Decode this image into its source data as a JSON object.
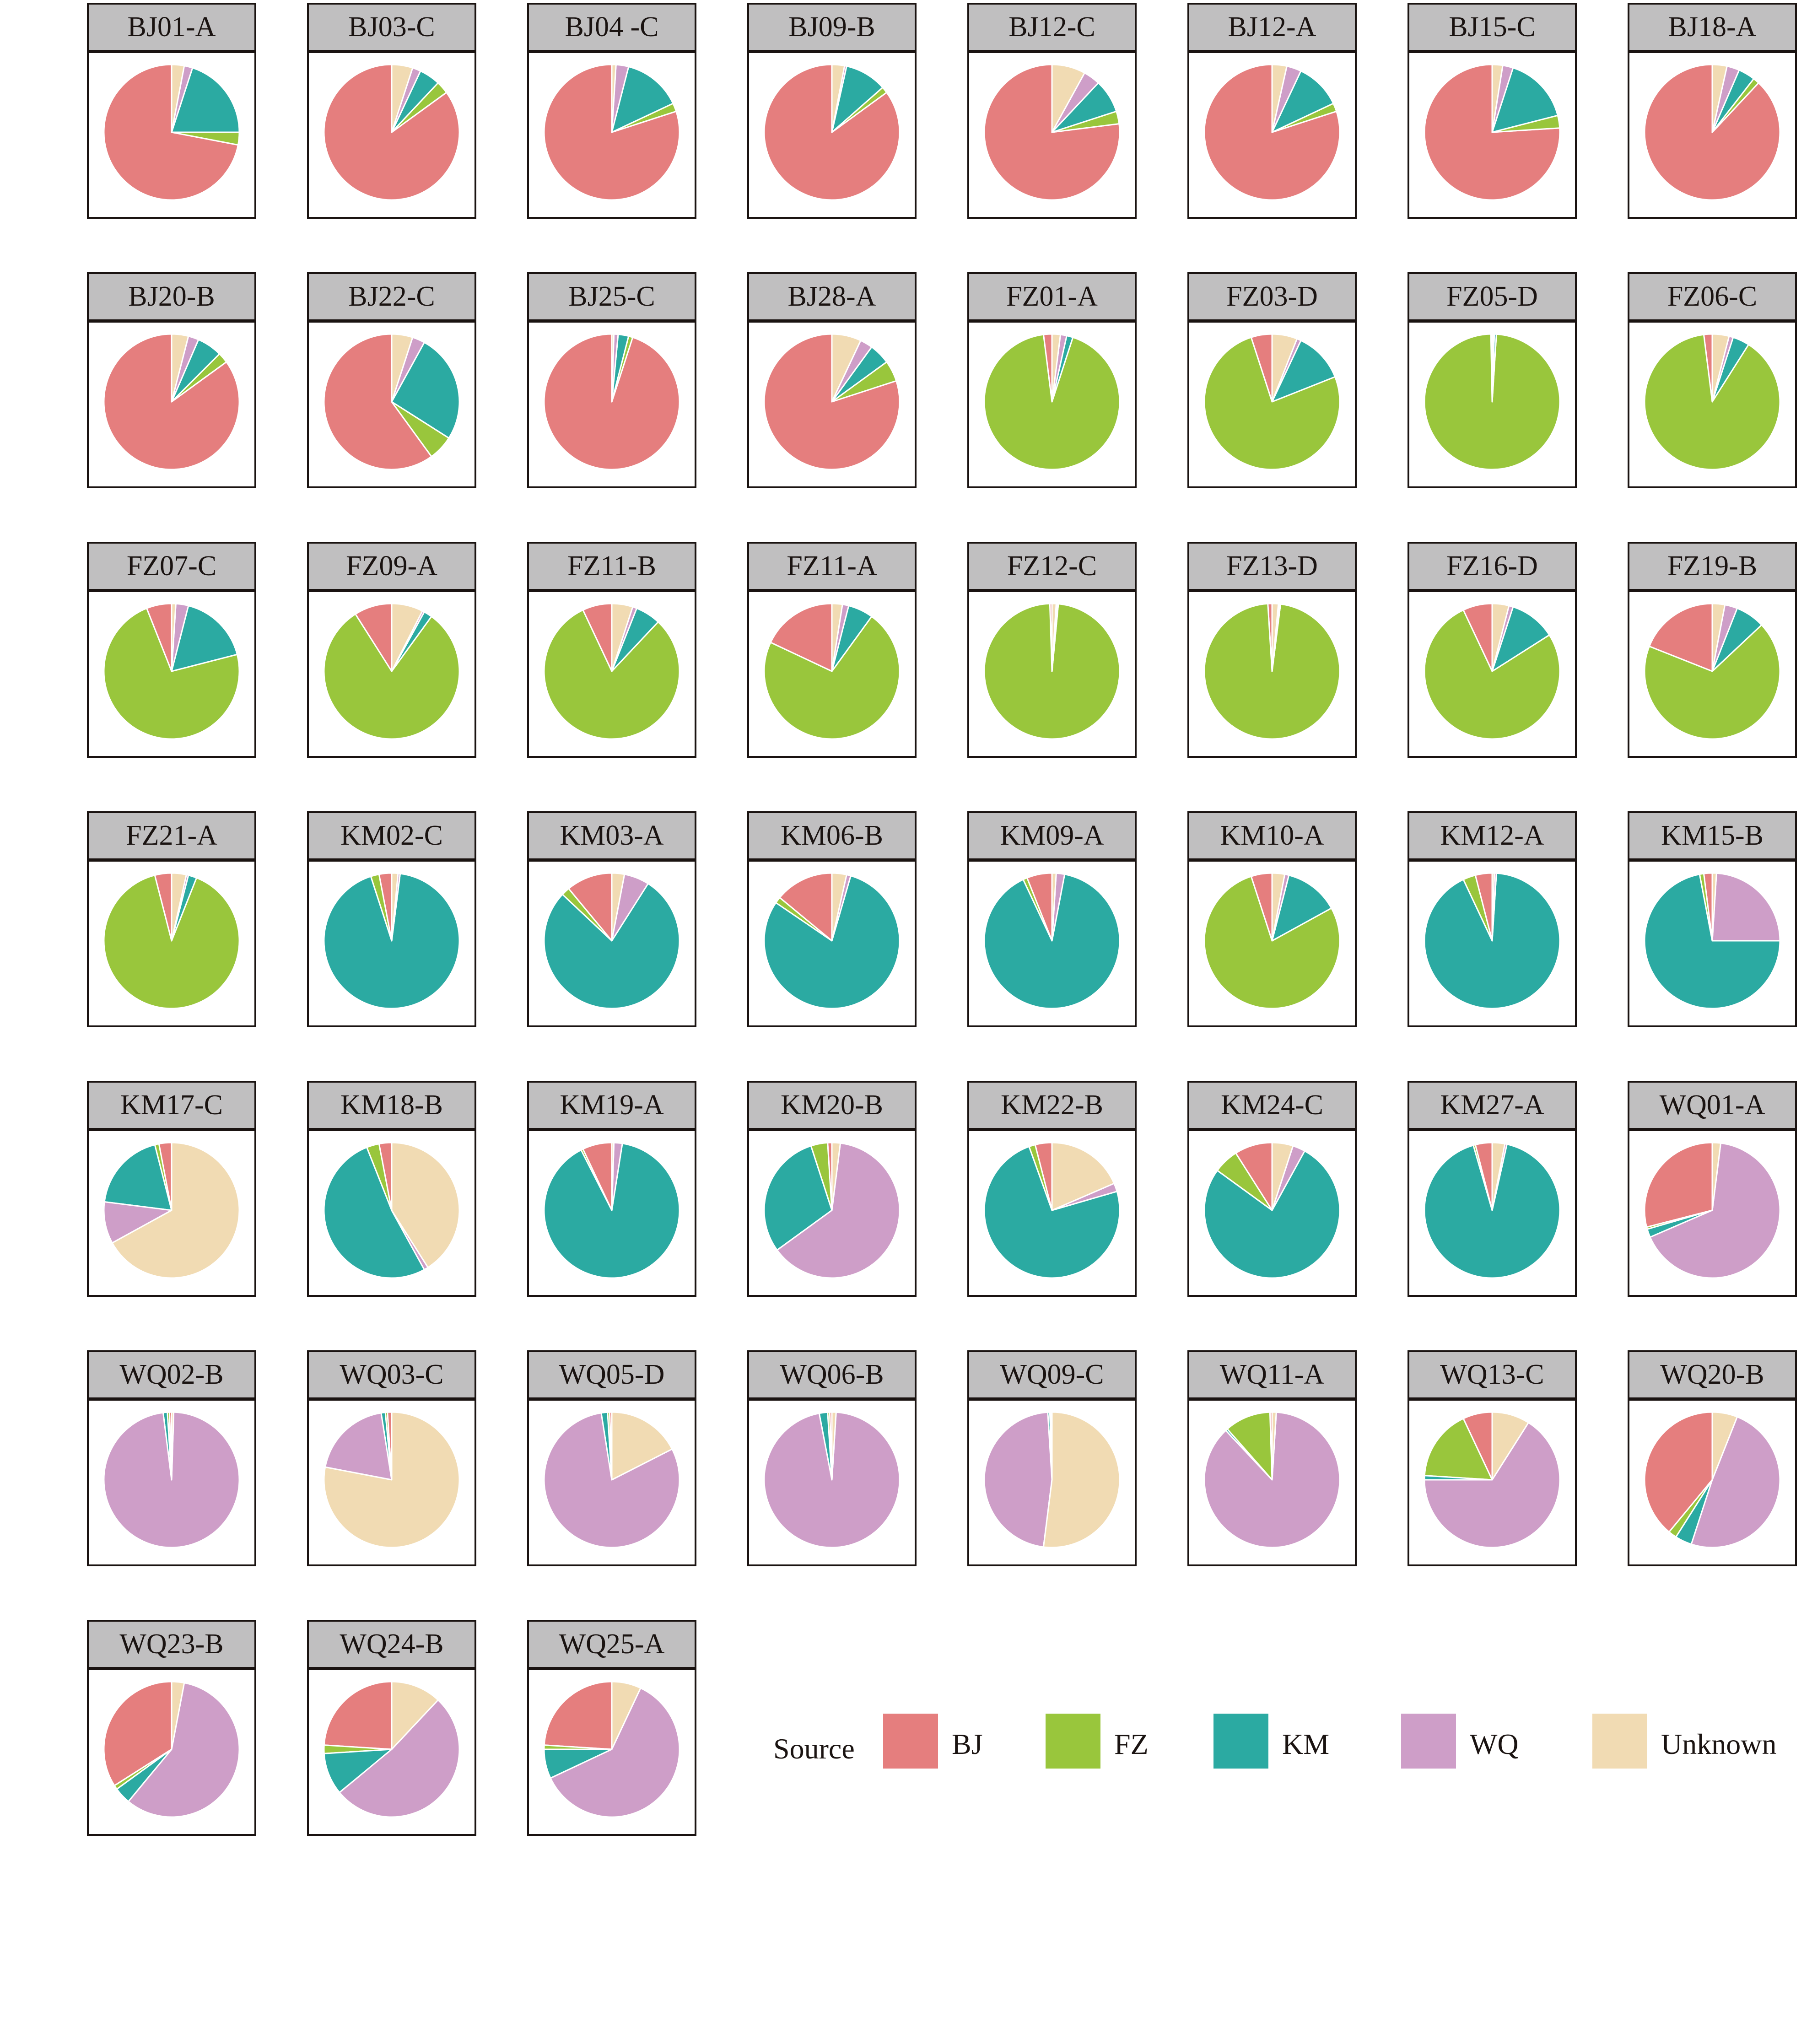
{
  "chart_data": {
    "type": "pie",
    "title": "",
    "legend": {
      "title": "Source",
      "position": "bottom-right",
      "entries": [
        {
          "name": "BJ",
          "color": "#E57E7E"
        },
        {
          "name": "FZ",
          "color": "#99C63C"
        },
        {
          "name": "KM",
          "color": "#2BAAA2"
        },
        {
          "name": "WQ",
          "color": "#CE9EC8"
        },
        {
          "name": "Unknown",
          "color": "#F1DBB3"
        }
      ]
    },
    "categories": [
      "BJ",
      "FZ",
      "KM",
      "WQ",
      "Unknown"
    ],
    "unit": "percent",
    "panels": [
      {
        "name": "BJ01-A",
        "values": [
          72,
          3,
          20,
          2,
          3
        ]
      },
      {
        "name": "BJ03-C",
        "values": [
          85,
          3,
          5,
          2,
          5
        ]
      },
      {
        "name": "BJ04 -C",
        "values": [
          80,
          2,
          14,
          3,
          1
        ]
      },
      {
        "name": "BJ09-B",
        "values": [
          85,
          1.5,
          10,
          0.5,
          3
        ]
      },
      {
        "name": "BJ12-C",
        "values": [
          77,
          3,
          8,
          4,
          8
        ]
      },
      {
        "name": "BJ12-A",
        "values": [
          80,
          2,
          11,
          3.5,
          3.5
        ]
      },
      {
        "name": "BJ15-C",
        "values": [
          76,
          3,
          16,
          2.5,
          2.5
        ]
      },
      {
        "name": "BJ18-A",
        "values": [
          88,
          1.5,
          4,
          3,
          3.5
        ]
      },
      {
        "name": "BJ20-B",
        "values": [
          85,
          2.5,
          6,
          2.5,
          4
        ]
      },
      {
        "name": "BJ22-C",
        "values": [
          60,
          6,
          26,
          3,
          5
        ]
      },
      {
        "name": "BJ25-C",
        "values": [
          95,
          1,
          2.5,
          1,
          0.5
        ]
      },
      {
        "name": "BJ28-A",
        "values": [
          80,
          5,
          5,
          3,
          7
        ]
      },
      {
        "name": "FZ01-A",
        "values": [
          2,
          93,
          1.5,
          1.5,
          2
        ]
      },
      {
        "name": "FZ03-D",
        "values": [
          5,
          76,
          12,
          1,
          6
        ]
      },
      {
        "name": "FZ05-D",
        "values": [
          0.3,
          98.7,
          0.5,
          0.3,
          0.2
        ]
      },
      {
        "name": "FZ06-C",
        "values": [
          2,
          89,
          4,
          1,
          4
        ]
      },
      {
        "name": "FZ07-C",
        "values": [
          6,
          73,
          17,
          3,
          1
        ]
      },
      {
        "name": "FZ09-A",
        "values": [
          9,
          81,
          2,
          0.5,
          7.5
        ]
      },
      {
        "name": "FZ11-B",
        "values": [
          7,
          81,
          6,
          1,
          5
        ]
      },
      {
        "name": "FZ11-A",
        "values": [
          18,
          72,
          6,
          1.5,
          2.5
        ]
      },
      {
        "name": "FZ12-C",
        "values": [
          0.5,
          98,
          0.3,
          0.2,
          1
        ]
      },
      {
        "name": "FZ13-D",
        "values": [
          1,
          97,
          0.3,
          0.2,
          1.5
        ]
      },
      {
        "name": "FZ16-D",
        "values": [
          7,
          77,
          11,
          1,
          4
        ]
      },
      {
        "name": "FZ19-B",
        "values": [
          19,
          68,
          7,
          3,
          3
        ]
      },
      {
        "name": "FZ21-A",
        "values": [
          4,
          90,
          2,
          0.5,
          3.5
        ]
      },
      {
        "name": "KM02-C",
        "values": [
          3,
          2,
          93,
          0.5,
          1.5
        ]
      },
      {
        "name": "KM03-A",
        "values": [
          11,
          2,
          78,
          6,
          3
        ]
      },
      {
        "name": "KM06-B",
        "values": [
          14,
          1.5,
          80,
          1,
          3.5
        ]
      },
      {
        "name": "KM09-A",
        "values": [
          6,
          1,
          90,
          2,
          1
        ]
      },
      {
        "name": "KM10-A",
        "values": [
          5,
          78,
          13,
          1,
          3
        ]
      },
      {
        "name": "KM12-A",
        "values": [
          4,
          3,
          92,
          0.5,
          0.5
        ]
      },
      {
        "name": "KM15-B",
        "values": [
          2,
          1,
          72,
          24,
          1
        ]
      },
      {
        "name": "KM17-C",
        "values": [
          3,
          1,
          19,
          10,
          67
        ]
      },
      {
        "name": "KM18-B",
        "values": [
          3,
          3,
          52,
          1,
          41
        ]
      },
      {
        "name": "KM19-A",
        "values": [
          7,
          0.5,
          90,
          2,
          0.5
        ]
      },
      {
        "name": "KM20-B",
        "values": [
          1,
          4,
          30,
          63,
          2
        ]
      },
      {
        "name": "KM22-B",
        "values": [
          4,
          1.5,
          74,
          2,
          18.5
        ]
      },
      {
        "name": "KM24-C",
        "values": [
          9,
          6,
          77,
          3,
          5
        ]
      },
      {
        "name": "KM27-A",
        "values": [
          4,
          0.5,
          92,
          0.5,
          3
        ]
      },
      {
        "name": "WQ01-A",
        "values": [
          29,
          0.5,
          2,
          66.5,
          2
        ]
      },
      {
        "name": "WQ02-B",
        "values": [
          0.5,
          0.5,
          1,
          97.5,
          0.5
        ]
      },
      {
        "name": "WQ03-C",
        "values": [
          1,
          0.5,
          1,
          19.5,
          78
        ]
      },
      {
        "name": "WQ05-D",
        "values": [
          0.5,
          0.5,
          1.5,
          80,
          17.5
        ]
      },
      {
        "name": "WQ06-B",
        "values": [
          0.5,
          0.5,
          2,
          96,
          1
        ]
      },
      {
        "name": "WQ09-C",
        "values": [
          0.2,
          0.3,
          0.5,
          47,
          52
        ]
      },
      {
        "name": "WQ11-A",
        "values": [
          0.5,
          11,
          0.5,
          87,
          1
        ]
      },
      {
        "name": "WQ13-C",
        "values": [
          7,
          17,
          1,
          66,
          9
        ]
      },
      {
        "name": "WQ20-B",
        "values": [
          39,
          2,
          4,
          49,
          6
        ]
      },
      {
        "name": "WQ23-B",
        "values": [
          34,
          1,
          4,
          58,
          3
        ]
      },
      {
        "name": "WQ24-B",
        "values": [
          24,
          2,
          10,
          52,
          12
        ]
      },
      {
        "name": "WQ25-A",
        "values": [
          24,
          1,
          7,
          61,
          7
        ]
      }
    ]
  }
}
